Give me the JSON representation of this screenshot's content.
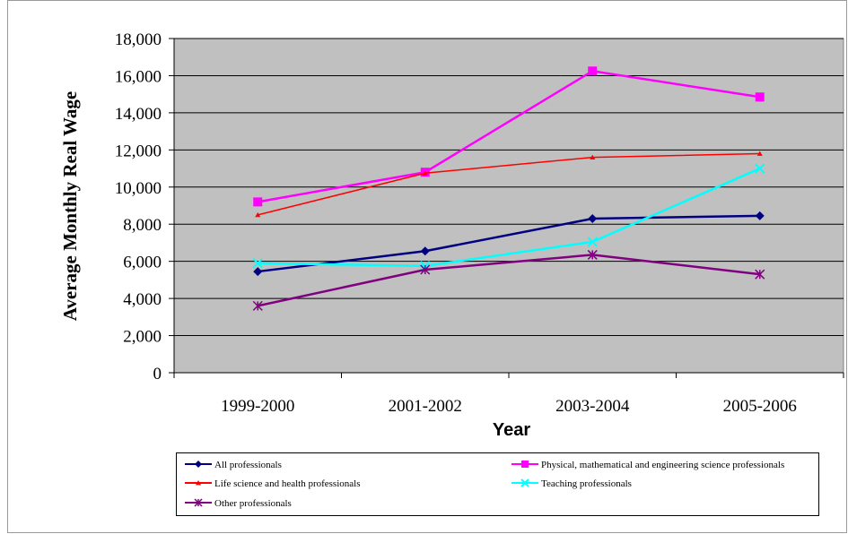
{
  "chart_data": {
    "type": "line",
    "title": "",
    "xlabel": "Year",
    "ylabel": "Average Monthly Real Wage",
    "categories": [
      "1999-2000",
      "2001-2002",
      "2003-2004",
      "2005-2006"
    ],
    "ylim": [
      0,
      18000
    ],
    "yticks": [
      0,
      2000,
      4000,
      6000,
      8000,
      10000,
      12000,
      14000,
      16000,
      18000
    ],
    "ytick_labels": [
      "0",
      "2,000",
      "4,000",
      "6,000",
      "8,000",
      "10,000",
      "12,000",
      "14,000",
      "16,000",
      "18,000"
    ],
    "grid": true,
    "legend_position": "bottom",
    "series": [
      {
        "name": "All professionals",
        "color": "#000080",
        "marker": "diamond",
        "values": [
          5450,
          6550,
          8300,
          8450
        ]
      },
      {
        "name": "Physical, mathematical and engineering science professionals",
        "color": "#ff00ff",
        "marker": "square",
        "values": [
          9200,
          10800,
          16250,
          14850
        ]
      },
      {
        "name": "Life science and health professionals",
        "color": "#ff0000",
        "marker": "triangle",
        "values": [
          8500,
          10750,
          11600,
          11800
        ]
      },
      {
        "name": "Teaching professionals",
        "color": "#00ffff",
        "marker": "x",
        "values": [
          5900,
          5750,
          7050,
          11000
        ]
      },
      {
        "name": "Other professionals",
        "color": "#800080",
        "marker": "star",
        "values": [
          3600,
          5550,
          6350,
          5300
        ]
      }
    ]
  }
}
